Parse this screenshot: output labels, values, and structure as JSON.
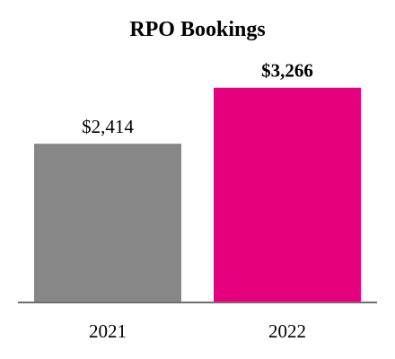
{
  "chart_data": {
    "type": "bar",
    "title": "RPO Bookings",
    "categories": [
      "2021",
      "2022"
    ],
    "values": [
      2414,
      3266
    ],
    "value_labels": [
      "$2,414",
      "$3,266"
    ],
    "bold_labels": [
      false,
      true
    ],
    "colors": [
      "#878787",
      "#e5007e"
    ],
    "axis_color": "#6e6e6e",
    "xlabel": "",
    "ylabel": "",
    "ylim": [
      0,
      4600
    ],
    "grid": false,
    "legend": "none"
  }
}
